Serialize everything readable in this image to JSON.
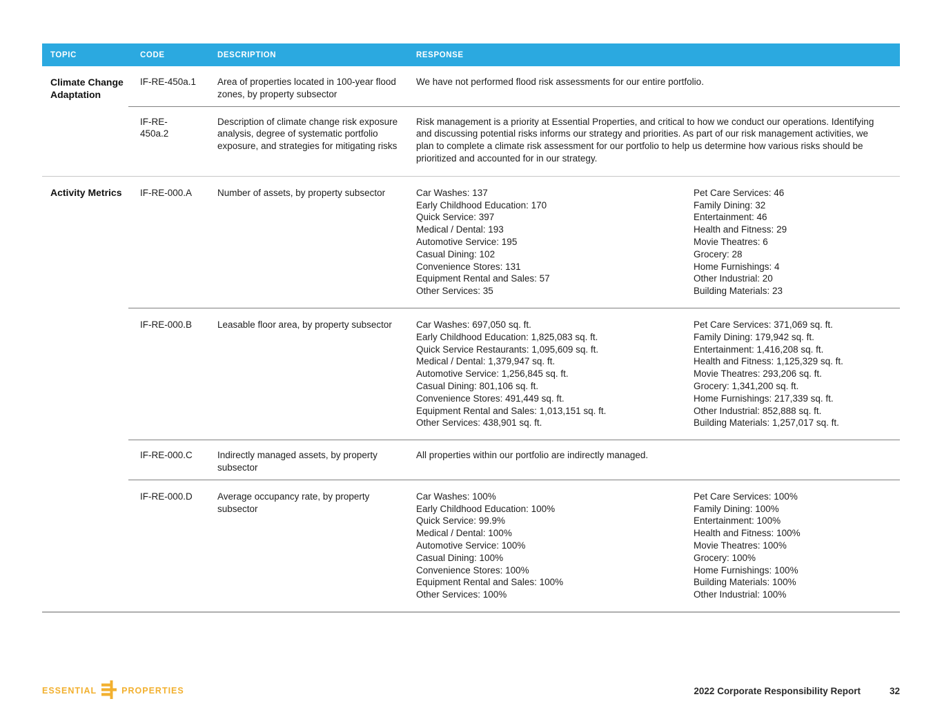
{
  "table": {
    "headers": {
      "topic": "TOPIC",
      "code": "CODE",
      "description": "DESCRIPTION",
      "response": "RESPONSE"
    },
    "sections": [
      {
        "topic": "Climate Change Adaptation",
        "rows": [
          {
            "code": "IF-RE-450a.1",
            "description": "Area of properties located in 100-year flood zones, by property subsector",
            "response": "We have not performed flood risk assessments for our entire portfolio."
          },
          {
            "code": "IF-RE-\n450a.2",
            "description": "Description of climate change risk exposure analysis, degree of systematic portfolio exposure, and strategies for mitigating risks",
            "response": "Risk management is a priority at Essential Properties, and critical to how we conduct our operations. Identifying and discussing potential risks informs our strategy and priorities. As part of our risk management activities, we plan to complete a climate risk assessment for our portfolio to help us determine how various risks should be prioritized and accounted for in our strategy."
          }
        ]
      },
      {
        "topic": "Activity Metrics",
        "rows": [
          {
            "code": "IF-RE-000.A",
            "description": "Number of assets, by property subsector",
            "response_col1": [
              "Car Washes: 137",
              "Early Childhood Education: 170",
              "Quick Service: 397",
              "Medical / Dental: 193",
              "Automotive Service: 195",
              "Casual Dining: 102",
              "Convenience Stores: 131",
              "Equipment Rental and Sales: 57",
              "Other Services: 35"
            ],
            "response_col2": [
              "Pet Care Services: 46",
              "Family Dining: 32",
              "Entertainment: 46",
              "Health and Fitness: 29",
              "Movie Theatres: 6",
              "Grocery: 28",
              "Home Furnishings: 4",
              "Other Industrial: 20",
              "Building Materials: 23"
            ]
          },
          {
            "code": "IF-RE-000.B",
            "description": "Leasable floor area, by property subsector",
            "response_col1": [
              "Car Washes: 697,050 sq. ft.",
              "Early Childhood Education: 1,825,083 sq. ft.",
              "Quick Service Restaurants: 1,095,609 sq. ft.",
              "Medical / Dental: 1,379,947 sq. ft.",
              "Automotive Service: 1,256,845 sq. ft.",
              "Casual Dining: 801,106 sq. ft.",
              "Convenience Stores: 491,449 sq. ft.",
              "Equipment Rental and Sales: 1,013,151 sq. ft.",
              "Other Services: 438,901 sq. ft."
            ],
            "response_col2": [
              "Pet Care Services: 371,069 sq. ft.",
              "Family Dining: 179,942 sq. ft.",
              "Entertainment: 1,416,208 sq. ft.",
              "Health and Fitness: 1,125,329 sq. ft.",
              "Movie Theatres: 293,206 sq. ft.",
              "Grocery: 1,341,200 sq. ft.",
              "Home Furnishings: 217,339 sq. ft.",
              "Other Industrial: 852,888 sq. ft.",
              "Building Materials: 1,257,017 sq. ft."
            ]
          },
          {
            "code": "IF-RE-000.C",
            "description": "Indirectly managed assets, by property subsector",
            "response": "All properties within our portfolio are indirectly managed."
          },
          {
            "code": "IF-RE-000.D",
            "description": "Average occupancy rate, by property subsector",
            "response_col1": [
              "Car Washes: 100%",
              "Early Childhood Education: 100%",
              "Quick Service: 99.9%",
              "Medical / Dental: 100%",
              "Automotive Service: 100%",
              "Casual Dining: 100%",
              "Convenience Stores: 100%",
              "Equipment Rental and Sales: 100%",
              "Other Services: 100%"
            ],
            "response_col2": [
              "Pet Care Services: 100%",
              "Family Dining: 100%",
              "Entertainment: 100%",
              "Health and Fitness: 100%",
              "Movie Theatres: 100%",
              "Grocery: 100%",
              "Home Furnishings: 100%",
              "Building Materials: 100%",
              "Other Industrial: 100%"
            ]
          }
        ]
      }
    ]
  },
  "footer": {
    "logo_left": "ESSENTIAL",
    "logo_right": "PROPERTIES",
    "report_title": "2022 Corporate Responsibility Report",
    "page_number": "32"
  },
  "colors": {
    "header_bg": "#2BA9E0",
    "logo_gold": "#F2B02F"
  }
}
